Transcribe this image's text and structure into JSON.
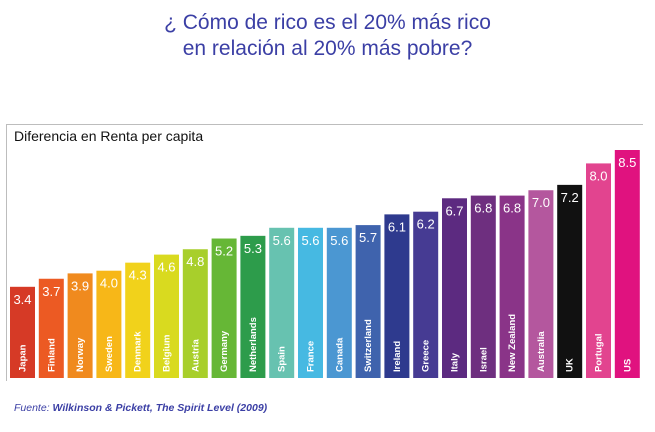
{
  "title": {
    "line1": "¿ Cómo de rico es el 20% más rico",
    "line2": "en relación al 20% más pobre?"
  },
  "source": {
    "prefix": "Fuente:",
    "text": "Wilkinson & Pickett, The Spirit Level (2009)"
  },
  "chart_data": {
    "type": "bar",
    "title": "Diferencia en Renta per capita",
    "xlabel": "",
    "ylabel": "",
    "ylim": [
      0,
      8.5
    ],
    "grid": false,
    "categories": [
      "Japan",
      "Finland",
      "Norway",
      "Sweden",
      "Denmark",
      "Belgium",
      "Austria",
      "Germany",
      "Netherlands",
      "Spain",
      "France",
      "Canada",
      "Switzerland",
      "Ireland",
      "Greece",
      "Italy",
      "Israel",
      "New Zealand",
      "Australia",
      "UK",
      "Portugal",
      "US"
    ],
    "values": [
      3.4,
      3.7,
      3.9,
      4.0,
      4.3,
      4.6,
      4.8,
      5.2,
      5.3,
      5.6,
      5.6,
      5.6,
      5.7,
      6.1,
      6.2,
      6.7,
      6.8,
      6.8,
      7.0,
      7.2,
      8.0,
      8.5
    ],
    "value_labels": [
      "3.4",
      "3.7",
      "3.9",
      "4.0",
      "4.3",
      "4.6",
      "4.8",
      "5.2",
      "5.3",
      "5.6",
      "5.6",
      "5.6",
      "5.7",
      "6.1",
      "6.2",
      "6.7",
      "6.8",
      "6.8",
      "7.0",
      "7.2",
      "8.0",
      "8.5"
    ],
    "colors": [
      "#d63a26",
      "#ec5a23",
      "#f08a1e",
      "#f7b718",
      "#f1d21b",
      "#d9da1f",
      "#a8cf2b",
      "#66b736",
      "#2d9c4b",
      "#67c2b0",
      "#46b9e2",
      "#4b97d2",
      "#3f63ad",
      "#2e3a8e",
      "#463b93",
      "#5c2a80",
      "#6e2f7f",
      "#8a3488",
      "#b4579e",
      "#111111",
      "#e2448f",
      "#e0127f"
    ]
  }
}
